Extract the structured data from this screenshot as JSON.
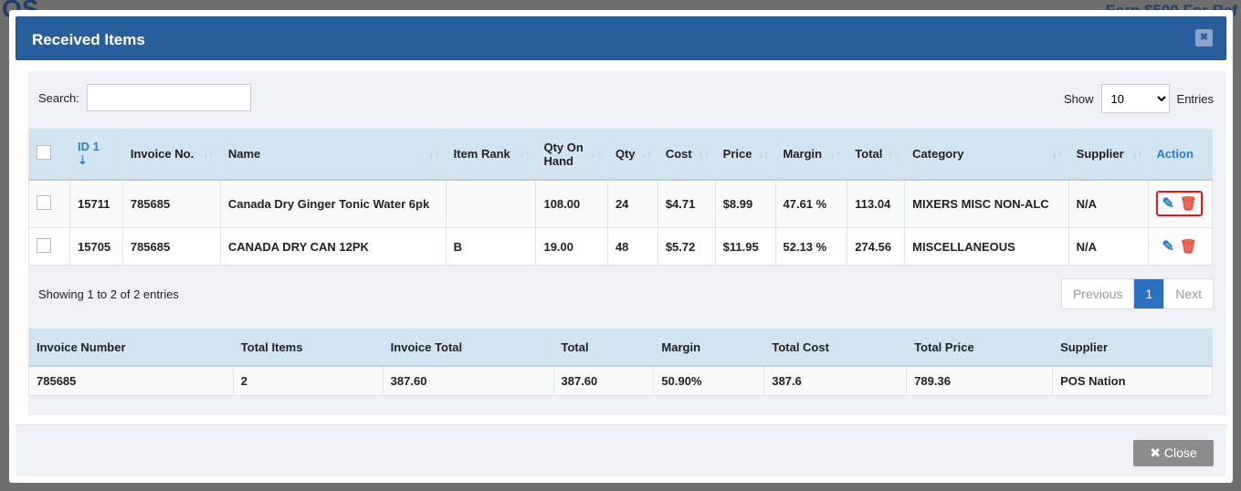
{
  "background": {
    "logo": "OS",
    "banner": "Earn $500 For Ref"
  },
  "modal": {
    "title": "Received Items",
    "close_x": "✖",
    "search_label": "Search:",
    "search_value": "",
    "show_label": "Show",
    "entries_value": "10",
    "entries_label": "Entries",
    "columns": [
      "ID 1",
      "Invoice No.",
      "Name",
      "Item Rank",
      "Qty On Hand",
      "Qty",
      "Cost",
      "Price",
      "Margin",
      "Total",
      "Category",
      "Supplier",
      "Action"
    ],
    "rows": [
      {
        "id": "15711",
        "invoice": "785685",
        "name": "Canada Dry Ginger Tonic Water 6pk",
        "rank": "",
        "qoh": "108.00",
        "qty": "24",
        "cost": "$4.71",
        "price": "$8.99",
        "margin": "47.61 %",
        "total": "113.04",
        "category": "MIXERS MISC NON-ALC",
        "supplier": "N/A"
      },
      {
        "id": "15705",
        "invoice": "785685",
        "name": "CANADA DRY CAN 12PK",
        "rank": "B",
        "qoh": "19.00",
        "qty": "48",
        "cost": "$5.72",
        "price": "$11.95",
        "margin": "52.13 %",
        "total": "274.56",
        "category": "MISCELLANEOUS",
        "supplier": "N/A"
      }
    ],
    "showing": "Showing 1 to 2 of 2 entries",
    "pager": {
      "prev": "Previous",
      "page": "1",
      "next": "Next"
    },
    "summary": {
      "headers": [
        "Invoice Number",
        "Total Items",
        "Invoice Total",
        "Total",
        "Margin",
        "Total Cost",
        "Total Price",
        "Supplier"
      ],
      "values": [
        "785685",
        "2",
        "387.60",
        "387.60",
        "50.90%",
        "387.6",
        "789.36",
        "POS Nation"
      ]
    },
    "close_label": "Close"
  }
}
